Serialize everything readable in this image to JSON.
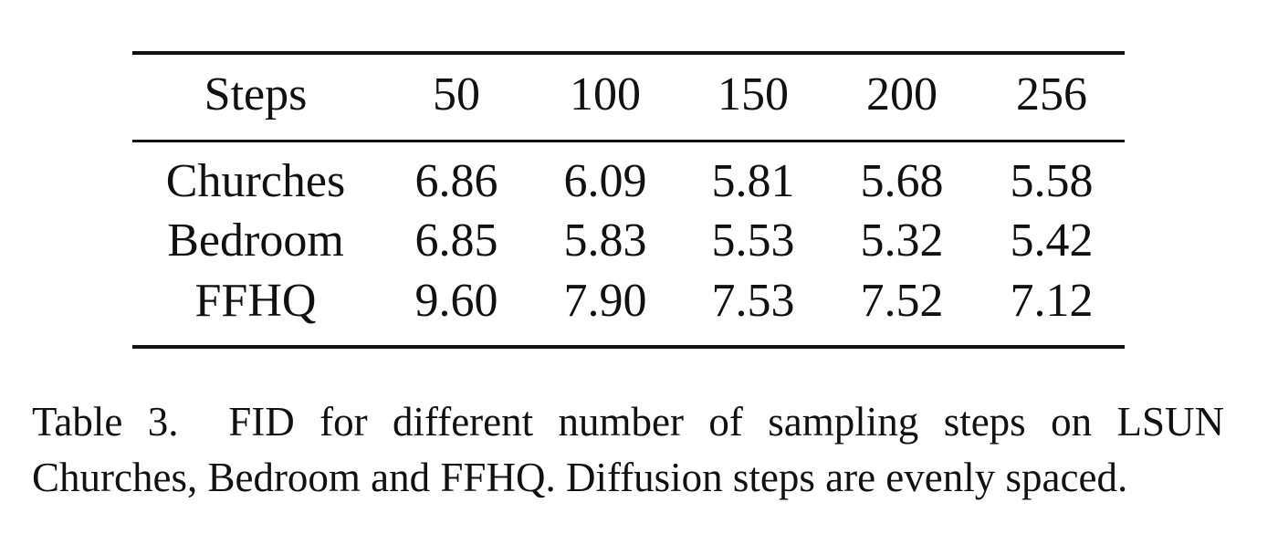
{
  "table": {
    "header": [
      "Steps",
      "50",
      "100",
      "150",
      "200",
      "256"
    ],
    "rows": [
      [
        "Churches",
        "6.86",
        "6.09",
        "5.81",
        "5.68",
        "5.58"
      ],
      [
        "Bedroom",
        "6.85",
        "5.83",
        "5.53",
        "5.32",
        "5.42"
      ],
      [
        "FFHQ",
        "9.60",
        "7.90",
        "7.53",
        "7.52",
        "7.12"
      ]
    ]
  },
  "caption": {
    "label": "Table 3.",
    "text": "FID for different number of sampling steps on LSUN Churches, Bedroom and FFHQ. Diffusion steps are evenly spaced."
  }
}
